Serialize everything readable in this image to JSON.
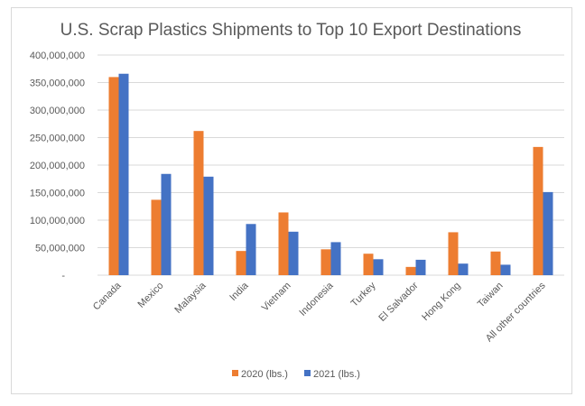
{
  "chart_data": {
    "type": "bar",
    "title": "U.S. Scrap Plastics Shipments to Top 10 Export Destinations",
    "xlabel": "",
    "ylabel": "",
    "ylim": [
      0,
      400000000
    ],
    "yticks": [
      0,
      50000000,
      100000000,
      150000000,
      200000000,
      250000000,
      300000000,
      350000000,
      400000000
    ],
    "ytick_labels": [
      "-",
      "50,000,000",
      "100,000,000",
      "150,000,000",
      "200,000,000",
      "250,000,000",
      "300,000,000",
      "350,000,000",
      "400,000,000"
    ],
    "grid": true,
    "legend_position": "bottom",
    "categories": [
      "Canada",
      "Mexico",
      "Malaysia",
      "India",
      "Vietnam",
      "Indonesia",
      "Turkey",
      "El Salvador",
      "Hong Kong",
      "Taiwan",
      "All other countries"
    ],
    "series": [
      {
        "name": "2020 (lbs.)",
        "color": "#ED7D31",
        "values": [
          360000000,
          137000000,
          262000000,
          44000000,
          114000000,
          47000000,
          39000000,
          15000000,
          78000000,
          43000000,
          233000000
        ]
      },
      {
        "name": "2021 (lbs.)",
        "color": "#4472C4",
        "values": [
          366000000,
          184000000,
          179000000,
          93000000,
          79000000,
          60000000,
          29000000,
          28000000,
          21000000,
          19000000,
          151000000
        ]
      }
    ]
  }
}
